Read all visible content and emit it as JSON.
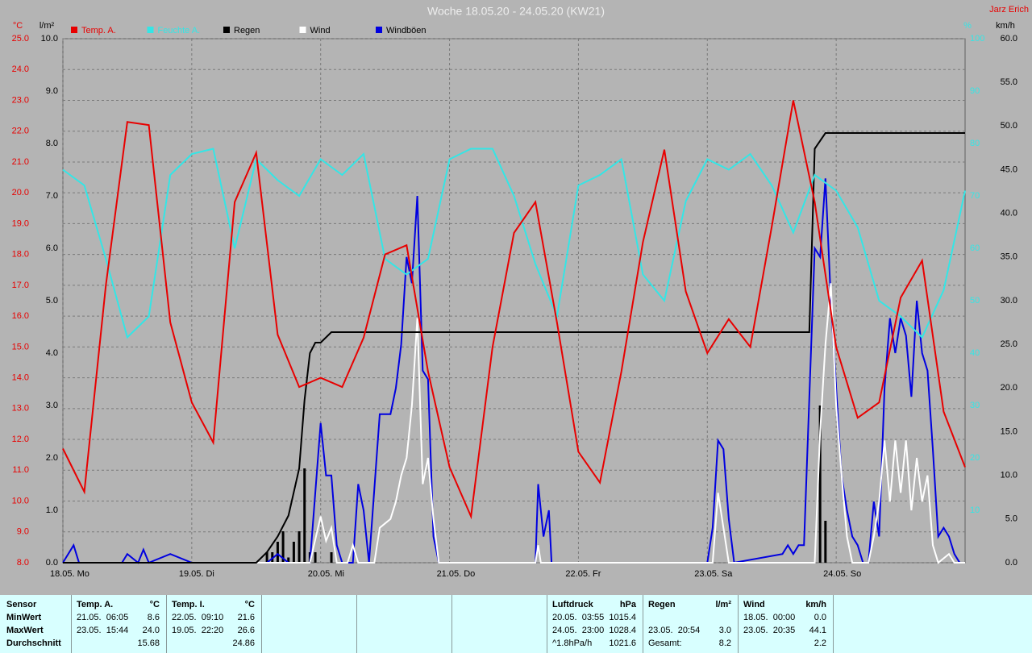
{
  "chart_data": {
    "type": "line",
    "title": "Woche 18.05.20 - 24.05.20 (KW21)",
    "author": "Jarz Erich",
    "units": {
      "y": "°C",
      "y2": "l/m²",
      "y3": "%",
      "y4": "km/h"
    },
    "xlim": [
      0,
      168
    ],
    "xticks": [
      {
        "value": 0,
        "label": "18.05. Mo"
      },
      {
        "value": 24,
        "label": "19.05. Di"
      },
      {
        "value": 48,
        "label": "20.05. Mi"
      },
      {
        "value": 72,
        "label": "21.05. Do"
      },
      {
        "value": 96,
        "label": "22.05. Fr"
      },
      {
        "value": 120,
        "label": "23.05. Sa"
      },
      {
        "value": 144,
        "label": "24.05. So"
      }
    ],
    "ylim": [
      8,
      25
    ],
    "yticks": [
      {
        "value": 8,
        "label": "8.0"
      },
      {
        "value": 9,
        "label": "9.0"
      },
      {
        "value": 10,
        "label": "10.0"
      },
      {
        "value": 11,
        "label": "11.0"
      },
      {
        "value": 12,
        "label": "12.0"
      },
      {
        "value": 13,
        "label": "13.0"
      },
      {
        "value": 14,
        "label": "14.0"
      },
      {
        "value": 15,
        "label": "15.0"
      },
      {
        "value": 16,
        "label": "16.0"
      },
      {
        "value": 17,
        "label": "17.0"
      },
      {
        "value": 18,
        "label": "18.0"
      },
      {
        "value": 19,
        "label": "19.0"
      },
      {
        "value": 20,
        "label": "20.0"
      },
      {
        "value": 21,
        "label": "21.0"
      },
      {
        "value": 22,
        "label": "22.0"
      },
      {
        "value": 23,
        "label": "23.0"
      },
      {
        "value": 24,
        "label": "24.0"
      },
      {
        "value": 25,
        "label": "25.0"
      }
    ],
    "y2lim": [
      0,
      10
    ],
    "y2ticks": [
      {
        "value": 0,
        "label": "0.0"
      },
      {
        "value": 1,
        "label": "1.0"
      },
      {
        "value": 2,
        "label": "2.0"
      },
      {
        "value": 3,
        "label": "3.0"
      },
      {
        "value": 4,
        "label": "4.0"
      },
      {
        "value": 5,
        "label": "5.0"
      },
      {
        "value": 6,
        "label": "6.0"
      },
      {
        "value": 7,
        "label": "7.0"
      },
      {
        "value": 8,
        "label": "8.0"
      },
      {
        "value": 9,
        "label": "9.0"
      },
      {
        "value": 10,
        "label": "10.0"
      }
    ],
    "y3lim": [
      0,
      100
    ],
    "y3ticks": [
      10,
      20,
      30,
      40,
      50,
      60,
      70,
      80,
      90,
      100
    ],
    "y4lim": [
      0,
      60
    ],
    "y4ticks": [
      {
        "value": 0,
        "label": "0.0"
      },
      {
        "value": 5,
        "label": "5.0"
      },
      {
        "value": 10,
        "label": "10.0"
      },
      {
        "value": 15,
        "label": "15.0"
      },
      {
        "value": 20,
        "label": "20.0"
      },
      {
        "value": 25,
        "label": "25.0"
      },
      {
        "value": 30,
        "label": "30.0"
      },
      {
        "value": 35,
        "label": "35.0"
      },
      {
        "value": 40,
        "label": "40.0"
      },
      {
        "value": 45,
        "label": "45.0"
      },
      {
        "value": 50,
        "label": "50.0"
      },
      {
        "value": 55,
        "label": "55.0"
      },
      {
        "value": 60,
        "label": "60.0"
      }
    ],
    "grid": true,
    "series": [
      {
        "name": "Temp. A.",
        "color": "#e80000",
        "axis": "y",
        "x": [
          0,
          4,
          8,
          12,
          16,
          20,
          24,
          28,
          32,
          36,
          40,
          44,
          48,
          52,
          56,
          60,
          64,
          68,
          72,
          76,
          80,
          84,
          88,
          92,
          96,
          100,
          104,
          108,
          112,
          116,
          120,
          124,
          128,
          132,
          136,
          140,
          144,
          148,
          152,
          156,
          160,
          164,
          168
        ],
        "values": [
          11.7,
          10.3,
          17.0,
          22.3,
          22.2,
          15.8,
          13.2,
          11.9,
          19.7,
          21.3,
          15.4,
          13.7,
          14.0,
          13.7,
          15.3,
          18.0,
          18.3,
          14.2,
          11.1,
          9.5,
          15.0,
          18.7,
          19.7,
          15.8,
          11.6,
          10.6,
          14.2,
          18.4,
          21.4,
          16.8,
          14.8,
          15.9,
          15.0,
          18.9,
          23.0,
          19.7,
          15.0,
          12.7,
          13.2,
          16.6,
          17.8,
          12.9,
          11.1
        ]
      },
      {
        "name": "Feuchte A.",
        "color": "#33e6e6",
        "axis": "y3",
        "x": [
          0,
          4,
          8,
          12,
          16,
          20,
          24,
          28,
          32,
          36,
          40,
          44,
          48,
          52,
          56,
          60,
          64,
          68,
          72,
          76,
          80,
          84,
          88,
          92,
          96,
          100,
          104,
          108,
          112,
          116,
          120,
          124,
          128,
          132,
          136,
          140,
          144,
          148,
          152,
          156,
          160,
          164,
          168
        ],
        "values": [
          75,
          72,
          58,
          43,
          47,
          74,
          78,
          79,
          60,
          77,
          73,
          70,
          77,
          74,
          78,
          58,
          55,
          58,
          77,
          79,
          79,
          70,
          57,
          47,
          72,
          74,
          77,
          55,
          50,
          69,
          77,
          75,
          78,
          72,
          63,
          74,
          71,
          64,
          50,
          47,
          43,
          52,
          71
        ]
      },
      {
        "name": "Regen",
        "color": "#000000",
        "axis": "y2",
        "x": [
          0,
          36,
          38,
          40,
          42,
          44,
          45,
          46,
          47,
          48,
          50,
          139,
          140,
          142,
          168
        ],
        "values": [
          0,
          0,
          0.2,
          0.5,
          0.9,
          1.8,
          3.1,
          4.0,
          4.2,
          4.2,
          4.4,
          4.4,
          7.9,
          8.2,
          8.2
        ]
      },
      {
        "name": "Wind",
        "color": "#ffffff",
        "axis": "y4",
        "x": [
          0,
          46,
          48,
          49,
          50,
          51,
          53,
          54,
          55,
          58,
          59,
          61,
          62,
          63,
          64,
          65,
          66,
          67,
          68,
          69,
          70,
          88,
          88.5,
          89,
          121,
          122,
          123,
          124,
          140,
          141,
          142,
          143,
          144,
          145,
          146,
          147,
          150,
          151,
          152,
          153,
          154,
          155,
          156,
          157,
          158,
          159,
          160,
          161,
          162,
          163,
          165,
          166,
          168
        ],
        "values": [
          0,
          0,
          5.3,
          2.5,
          4,
          0,
          0,
          2,
          0,
          0,
          4,
          5,
          7,
          10,
          12,
          18,
          28,
          9,
          12,
          5,
          0,
          0,
          2,
          0,
          0,
          8,
          4,
          0,
          0,
          15,
          25,
          32,
          18,
          10,
          3,
          0,
          0,
          3,
          7,
          14,
          7,
          14,
          8,
          14,
          6,
          12,
          7,
          10,
          2,
          0,
          1,
          0,
          0
        ]
      },
      {
        "name": "Windböen",
        "color": "#0000e0",
        "axis": "y4",
        "x": [
          0,
          2,
          3,
          11,
          12,
          14,
          15,
          16,
          20,
          24,
          38,
          40,
          42,
          46,
          48,
          49,
          50,
          51,
          52,
          54,
          55,
          56,
          57,
          59,
          61,
          62,
          63,
          64,
          65,
          66,
          67,
          68,
          69,
          70,
          88,
          88.5,
          89.5,
          90.5,
          91,
          120,
          121,
          122,
          123,
          124,
          125,
          134,
          135,
          136,
          137,
          138,
          140,
          141,
          142,
          143,
          144,
          145,
          146,
          147,
          148,
          149,
          150,
          151,
          152,
          153,
          154,
          155,
          156,
          157,
          158,
          159,
          160,
          161,
          162,
          163,
          164,
          165,
          166,
          167,
          168
        ],
        "values": [
          0,
          2,
          0,
          0,
          1,
          0,
          1.5,
          0,
          1,
          0,
          0,
          1,
          0,
          0,
          16,
          10,
          10,
          2,
          0,
          0,
          9,
          6,
          0,
          17,
          17,
          20,
          25,
          35,
          32,
          42,
          22,
          21,
          3,
          0,
          0,
          9,
          3,
          6,
          0,
          0,
          4,
          14,
          13,
          5,
          0,
          1,
          2,
          1,
          2,
          2,
          36,
          35,
          44,
          30,
          20,
          10,
          6,
          3,
          2,
          0,
          0,
          7,
          3,
          20,
          28,
          24,
          28,
          26,
          19,
          30,
          24,
          22,
          13,
          3,
          4,
          3,
          1,
          0,
          0
        ]
      }
    ],
    "rain_bars": {
      "color": "#000000",
      "axis": "y2",
      "x": [
        38,
        39,
        40,
        41,
        42,
        43,
        44,
        45,
        46,
        47,
        50,
        141,
        142
      ],
      "values": [
        0.2,
        0.2,
        0.4,
        0.6,
        0.1,
        0.4,
        0.6,
        1.8,
        0.2,
        0.2,
        0.2,
        3.0,
        0.8
      ]
    }
  },
  "stats": {
    "sensor": {
      "header": "Sensor",
      "rows": [
        "MinWert",
        "MaxWert",
        "Durchschnitt"
      ]
    },
    "columns": [
      {
        "name": "Temp. A.",
        "unit": "°C",
        "min": {
          "time": "21.05.  06:05",
          "value": "8.6"
        },
        "max": {
          "time": "23.05.  15:44",
          "value": "24.0"
        },
        "avg": {
          "value": "15.68"
        }
      },
      {
        "name": "Temp. I.",
        "unit": "°C",
        "min": {
          "time": "22.05.  09:10",
          "value": "21.6"
        },
        "max": {
          "time": "19.05.  22:20",
          "value": "26.6"
        },
        "avg": {
          "value": "24.86"
        }
      },
      {
        "name": "Luftdruck",
        "unit": "hPa",
        "min": {
          "time": "20.05.  03:55",
          "value": "1015.4"
        },
        "max": {
          "time": "24.05.  23:00",
          "value": "1028.4"
        },
        "avg": {
          "time": "^1.8hPa/h",
          "value": "1021.6"
        }
      },
      {
        "name": "Regen",
        "unit": "l/m²",
        "max": {
          "time": "23.05.  20:54",
          "value": "3.0"
        },
        "avg": {
          "time": "Gesamt:",
          "value": "8.2"
        }
      },
      {
        "name": "Wind",
        "unit": "km/h",
        "min": {
          "time": "18.05.  00:00",
          "value": "0.0"
        },
        "max": {
          "time": "23.05.  20:35",
          "value": "44.1"
        },
        "avg": {
          "value": "2.2"
        }
      }
    ]
  }
}
